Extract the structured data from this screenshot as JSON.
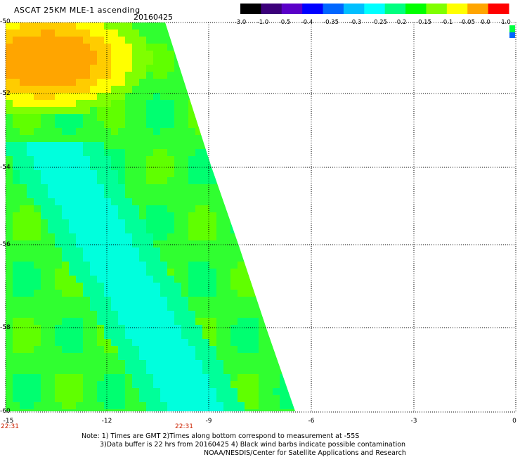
{
  "header": {
    "title": "ASCAT 25KM MLE-1 ascending",
    "date": "20160425"
  },
  "colorbar": {
    "labels": [
      "-3.0",
      "-1.0",
      "-0.5",
      "-0.4",
      "-0.35",
      "-0.3",
      "-0.25",
      "-0.2",
      "-0.15",
      "-0.1",
      "-0.05",
      "0.0",
      "1.0"
    ],
    "colors": [
      "#000000",
      "#3b007a",
      "#5a00c8",
      "#0000ff",
      "#0066ff",
      "#00bfff",
      "#00ffff",
      "#00ff80",
      "#00ff00",
      "#80ff00",
      "#ffff00",
      "#ffa500",
      "#ff0000"
    ]
  },
  "axes": {
    "y_ticks": [
      "-50",
      "-52",
      "-54",
      "-56",
      "-58",
      "-60"
    ],
    "x_ticks": [
      "-15",
      "-12",
      "-9",
      "-6",
      "-3",
      "0"
    ],
    "x_range": [
      -15,
      0
    ],
    "y_range": [
      -60,
      -50
    ]
  },
  "times": [
    "22:31",
    "22:31"
  ],
  "notes": {
    "line1": "Note: 1) Times are GMT 2)Times along bottom correspond to measurement at -55S",
    "line2": "3)Data buffer is 22 hrs from 20160425 4) Black wind barbs indicate possible contamination",
    "line3": "NOAA/NESDIS/Center for Satellite Applications and Research"
  }
}
